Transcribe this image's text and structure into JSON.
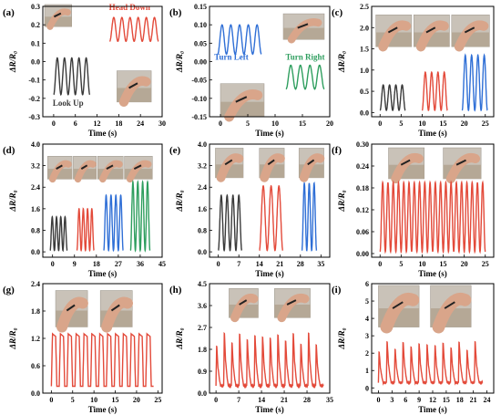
{
  "colors": {
    "black": "#3a3a3a",
    "red": "#e34a3a",
    "blue": "#2f6fd6",
    "green": "#2e9e5e",
    "olive": "#8a8a2a",
    "photo_bg": "#c9c2b8"
  },
  "chart_data": [
    {
      "id": "a",
      "panel_label": "(a)",
      "type": "line",
      "xlabel": "Time (s)",
      "ylabel": "ΔR/R₀",
      "xlim": [
        -3,
        30
      ],
      "ylim": [
        -0.3,
        0.3
      ],
      "xticks": [
        0,
        6,
        12,
        18,
        24,
        30
      ],
      "yticks": [
        -0.3,
        -0.2,
        -0.1,
        0.0,
        0.1,
        0.2,
        0.3
      ],
      "ytick_labels": [
        "-0.3",
        "-0.2",
        "-0.1",
        "0.0",
        "0.1",
        "0.2",
        "0.3"
      ],
      "series": [
        {
          "name": "Look Up",
          "color": "#3a3a3a",
          "shape": "sine",
          "x_start": 0,
          "x_end": 10,
          "cycles": 5,
          "y_base": -0.18,
          "y_peak": 0.02
        },
        {
          "name": "Head Down",
          "color": "#e34a3a",
          "shape": "sine",
          "x_start": 15.5,
          "x_end": 29,
          "cycles": 6,
          "y_base": 0.11,
          "y_peak": 0.24
        }
      ],
      "annotations": [
        {
          "text": "Head Down",
          "color": "#e34a3a",
          "x": 21,
          "y": 0.28
        },
        {
          "text": "Look Up",
          "color": "#3a3a3a",
          "x": 4,
          "y": -0.24
        }
      ],
      "photos": [
        {
          "name": "photo-neck-look-up",
          "x0": -2.5,
          "x1": 5,
          "y0": 0.19,
          "y1": 0.31
        },
        {
          "name": "photo-neck-head-down",
          "x0": 17.5,
          "x1": 27,
          "y0": -0.22,
          "y1": -0.05
        }
      ]
    },
    {
      "id": "b",
      "panel_label": "(b)",
      "type": "line",
      "xlabel": "Time (s)",
      "ylabel": "ΔR/R₀",
      "xlim": [
        -2,
        20
      ],
      "ylim": [
        -0.15,
        0.15
      ],
      "xticks": [
        0,
        5,
        10,
        15,
        20
      ],
      "yticks": [
        -0.15,
        -0.1,
        -0.05,
        0.0,
        0.05,
        0.1,
        0.15
      ],
      "ytick_labels": [
        "-0.15",
        "-0.10",
        "-0.05",
        "0.00",
        "0.05",
        "0.10",
        "0.15"
      ],
      "series": [
        {
          "name": "Turn Left",
          "color": "#2f6fd6",
          "shape": "sine",
          "x_start": -0.5,
          "x_end": 7.5,
          "cycles": 5,
          "y_base": 0.02,
          "y_peak": 0.1
        },
        {
          "name": "Turn Right",
          "color": "#2e9e5e",
          "shape": "sine",
          "x_start": 12,
          "x_end": 19,
          "cycles": 4,
          "y_base": -0.075,
          "y_peak": -0.01
        }
      ],
      "annotations": [
        {
          "text": "Turn Left",
          "color": "#2f6fd6",
          "x": 2,
          "y": 0.005
        },
        {
          "text": "Turn Right",
          "color": "#2e9e5e",
          "x": 15.5,
          "y": 0.005
        }
      ],
      "photos": [
        {
          "name": "photo-neck-turn-right",
          "x0": 11.5,
          "x1": 19,
          "y0": 0.06,
          "y1": 0.13
        },
        {
          "name": "photo-neck-turn-left",
          "x0": 0,
          "x1": 8,
          "y0": -0.15,
          "y1": -0.06
        }
      ]
    },
    {
      "id": "c",
      "panel_label": "(c)",
      "type": "line",
      "xlabel": "Time (s)",
      "ylabel": "ΔR/R₀",
      "xlim": [
        -2,
        27
      ],
      "ylim": [
        -0.1,
        2.5
      ],
      "xticks": [
        0,
        5,
        10,
        15,
        20,
        25
      ],
      "yticks": [
        0.0,
        0.5,
        1.0,
        1.5,
        2.0,
        2.5
      ],
      "ytick_labels": [
        "0.0",
        "0.5",
        "1.0",
        "1.5",
        "2.0",
        "2.5"
      ],
      "series": [
        {
          "color": "#3a3a3a",
          "shape": "sine",
          "x_start": 0,
          "x_end": 6,
          "cycles": 4,
          "y_base": 0.05,
          "y_peak": 0.65
        },
        {
          "color": "#e34a3a",
          "shape": "sine",
          "x_start": 10,
          "x_end": 16,
          "cycles": 4,
          "y_base": 0.05,
          "y_peak": 0.95
        },
        {
          "color": "#2f6fd6",
          "shape": "sine",
          "x_start": 19.5,
          "x_end": 25.5,
          "cycles": 4,
          "y_base": 0.05,
          "y_peak": 1.35
        }
      ],
      "annotations": [],
      "photos": [
        {
          "name": "photo-elbow-bend-1",
          "x0": -1,
          "x1": 7.5,
          "y0": 1.55,
          "y1": 2.3
        },
        {
          "name": "photo-elbow-bend-2",
          "x0": 8,
          "x1": 16.5,
          "y0": 1.55,
          "y1": 2.3
        },
        {
          "name": "photo-elbow-bend-3",
          "x0": 17,
          "x1": 26,
          "y0": 1.55,
          "y1": 2.3
        }
      ]
    },
    {
      "id": "d",
      "panel_label": "(d)",
      "type": "line",
      "xlabel": "Time (s)",
      "ylabel": "ΔR/R₀",
      "xlim": [
        -4,
        45
      ],
      "ylim": [
        -0.2,
        4.0
      ],
      "xticks": [
        0,
        9,
        18,
        27,
        36,
        45
      ],
      "yticks": [
        0.0,
        0.8,
        1.6,
        2.4,
        3.2,
        4.0
      ],
      "ytick_labels": [
        "0.0",
        "0.8",
        "1.6",
        "2.4",
        "3.2",
        "4.0"
      ],
      "series": [
        {
          "color": "#3a3a3a",
          "shape": "sine",
          "x_start": -1,
          "x_end": 6,
          "cycles": 4,
          "y_base": 0.05,
          "y_peak": 1.3
        },
        {
          "color": "#e34a3a",
          "shape": "sine",
          "x_start": 10,
          "x_end": 17,
          "cycles": 4,
          "y_base": 0.05,
          "y_peak": 1.6
        },
        {
          "color": "#2f6fd6",
          "shape": "sine",
          "x_start": 21,
          "x_end": 29,
          "cycles": 4,
          "y_base": 0.05,
          "y_peak": 2.1
        },
        {
          "color": "#2e9e5e",
          "shape": "sine",
          "x_start": 32,
          "x_end": 40,
          "cycles": 4,
          "y_base": 0.05,
          "y_peak": 2.6
        }
      ],
      "annotations": [],
      "photos": [
        {
          "name": "photo-wrist-bend-1",
          "x0": -2,
          "x1": 8,
          "y0": 2.7,
          "y1": 3.55
        },
        {
          "name": "photo-wrist-bend-2",
          "x0": 8.5,
          "x1": 18,
          "y0": 2.7,
          "y1": 3.55
        },
        {
          "name": "photo-wrist-bend-3",
          "x0": 18.5,
          "x1": 29,
          "y0": 2.7,
          "y1": 3.55
        },
        {
          "name": "photo-wrist-bend-4",
          "x0": 29.5,
          "x1": 41,
          "y0": 2.7,
          "y1": 3.55
        }
      ]
    },
    {
      "id": "e",
      "panel_label": "(e)",
      "type": "line",
      "xlabel": "Time (s)",
      "ylabel": "ΔR/R₀",
      "xlim": [
        -3,
        38
      ],
      "ylim": [
        -0.2,
        4.0
      ],
      "xticks": [
        0,
        7,
        14,
        21,
        28,
        35
      ],
      "yticks": [
        0.0,
        0.8,
        1.6,
        2.4,
        3.2,
        4.0
      ],
      "ytick_labels": [
        "0.0",
        "0.8",
        "1.6",
        "2.4",
        "3.2",
        "4.0"
      ],
      "series": [
        {
          "color": "#3a3a3a",
          "shape": "sine",
          "x_start": 0,
          "x_end": 8,
          "cycles": 4,
          "y_base": 0.05,
          "y_peak": 2.1
        },
        {
          "color": "#e34a3a",
          "shape": "sine",
          "x_start": 14,
          "x_end": 22,
          "cycles": 3,
          "y_base": 0.05,
          "y_peak": 2.45
        },
        {
          "color": "#2f6fd6",
          "shape": "sine",
          "x_start": 28.5,
          "x_end": 33.5,
          "cycles": 3,
          "y_base": 0.05,
          "y_peak": 2.55
        }
      ],
      "annotations": [],
      "photos": [
        {
          "name": "photo-knee-bend-1",
          "x0": -1,
          "x1": 8.5,
          "y0": 2.75,
          "y1": 3.85
        },
        {
          "name": "photo-knee-bend-2",
          "x0": 14,
          "x1": 22.5,
          "y0": 2.75,
          "y1": 3.85
        },
        {
          "name": "photo-knee-bend-3",
          "x0": 27.5,
          "x1": 36,
          "y0": 2.75,
          "y1": 3.85
        }
      ]
    },
    {
      "id": "f",
      "panel_label": "(f)",
      "type": "line",
      "xlabel": "Time (s)",
      "ylabel": "ΔR/R₀",
      "xlim": [
        -2,
        27
      ],
      "ylim": [
        -0.01,
        0.3
      ],
      "xticks": [
        0,
        5,
        10,
        15,
        20,
        25
      ],
      "yticks": [
        0.0,
        0.06,
        0.12,
        0.18,
        0.24,
        0.3
      ],
      "ytick_labels": [
        "0.00",
        "0.06",
        "0.12",
        "0.18",
        "0.24",
        "0.30"
      ],
      "series": [
        {
          "color": "#e34a3a",
          "shape": "sine",
          "x_start": 0,
          "x_end": 25,
          "cycles": 20,
          "y_base": 0.005,
          "y_peak": 0.195
        }
      ],
      "annotations": [],
      "photos": [
        {
          "name": "photo-foot-flat",
          "x0": 2,
          "x1": 10.5,
          "y0": 0.205,
          "y1": 0.29
        },
        {
          "name": "photo-foot-tiptoe",
          "x0": 15,
          "x1": 24,
          "y0": 0.205,
          "y1": 0.29
        }
      ]
    },
    {
      "id": "g",
      "panel_label": "(g)",
      "type": "line",
      "xlabel": "Time (s)",
      "ylabel": "ΔR/R₀",
      "xlim": [
        -2,
        26
      ],
      "ylim": [
        0.0,
        2.4
      ],
      "xticks": [
        0,
        5,
        10,
        15,
        20,
        25
      ],
      "yticks": [
        0.0,
        0.6,
        1.2,
        1.8,
        2.4
      ],
      "ytick_labels": [
        "0.0",
        "0.6",
        "1.2",
        "1.8",
        "2.4"
      ],
      "series": [
        {
          "color": "#e34a3a",
          "shape": "pulse",
          "x_start": 0,
          "x_end": 24,
          "cycles": 13,
          "y_base": 0.15,
          "y_peak": 1.3
        }
      ],
      "annotations": [],
      "photos": [
        {
          "name": "photo-basketball-shot-1",
          "x0": 1,
          "x1": 8.5,
          "y0": 1.45,
          "y1": 2.25
        },
        {
          "name": "photo-basketball-shot-2",
          "x0": 11.5,
          "x1": 19,
          "y0": 1.45,
          "y1": 2.25
        }
      ]
    },
    {
      "id": "h",
      "panel_label": "(h)",
      "type": "line",
      "xlabel": "Time (s)",
      "ylabel": "ΔR/R₀",
      "xlim": [
        -2,
        35
      ],
      "ylim": [
        0.0,
        4.5
      ],
      "xticks": [
        0,
        7,
        14,
        21,
        28,
        35
      ],
      "yticks": [
        0.0,
        0.9,
        1.8,
        2.7,
        3.6,
        4.5
      ],
      "ytick_labels": [
        "0.0",
        "0.9",
        "1.8",
        "2.7",
        "3.6",
        "4.5"
      ],
      "series": [
        {
          "color": "#e34a3a",
          "shape": "spike",
          "x_start": 0,
          "x_end": 33,
          "cycles": 14,
          "y_base": 0.3,
          "y_peak": 2.6
        }
      ],
      "annotations": [],
      "photos": [
        {
          "name": "photo-volleyball-pass-1",
          "x0": 4,
          "x1": 13,
          "y0": 3.1,
          "y1": 4.3
        },
        {
          "name": "photo-volleyball-pass-2",
          "x0": 18,
          "x1": 29,
          "y0": 3.1,
          "y1": 4.3
        }
      ]
    },
    {
      "id": "i",
      "panel_label": "(i)",
      "type": "line",
      "xlabel": "Time (s)",
      "ylabel": "ΔR/R₀",
      "xlim": [
        -1.5,
        25.5
      ],
      "ylim": [
        -0.3,
        6.0
      ],
      "xticks": [
        0,
        3,
        6,
        9,
        12,
        15,
        18,
        21,
        24
      ],
      "yticks": [
        0,
        1,
        2,
        3,
        4,
        5,
        6
      ],
      "ytick_labels": [
        "0",
        "1",
        "2",
        "3",
        "4",
        "5",
        "6"
      ],
      "series": [
        {
          "color": "#e34a3a",
          "shape": "spike",
          "x_start": 0,
          "x_end": 23,
          "cycles": 13,
          "y_base": 0.3,
          "y_peak": 2.8
        }
      ],
      "annotations": [],
      "photos": [
        {
          "name": "photo-jump-1",
          "x0": 0,
          "x1": 9,
          "y0": 3.5,
          "y1": 5.9
        },
        {
          "name": "photo-jump-2",
          "x0": 11.5,
          "x1": 20.5,
          "y0": 3.5,
          "y1": 5.9
        }
      ]
    }
  ]
}
